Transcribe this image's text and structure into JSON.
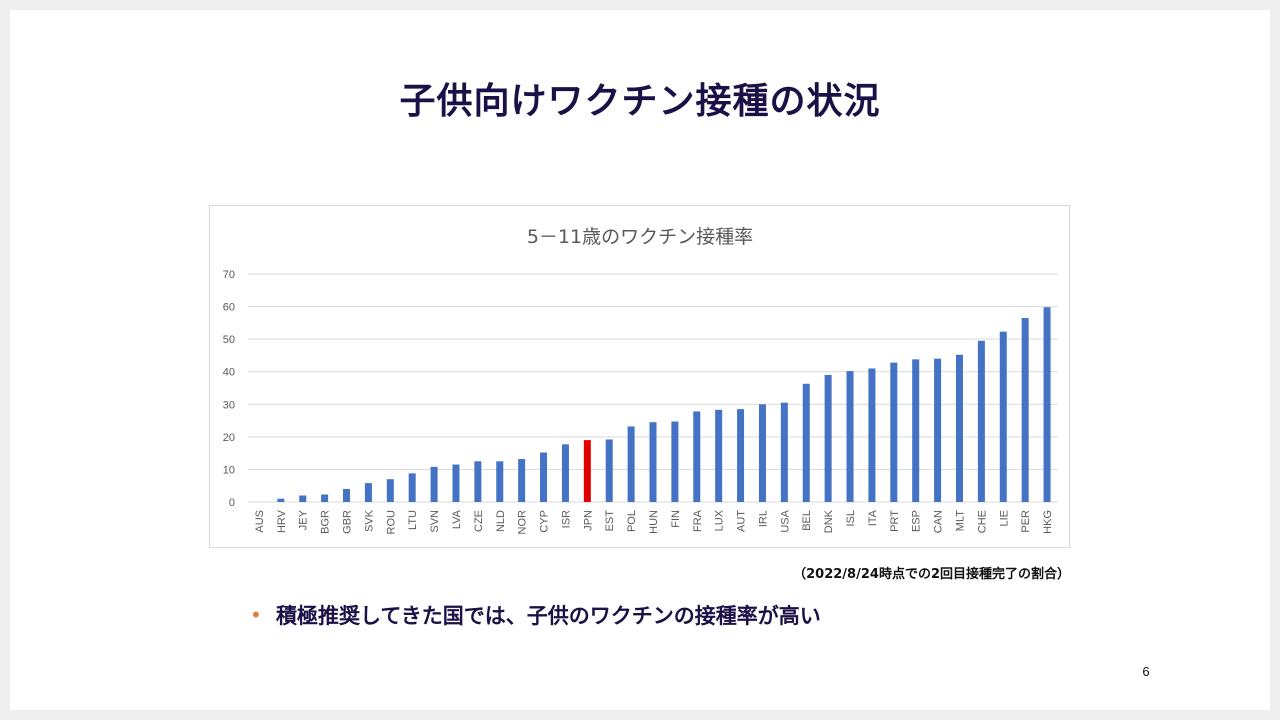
{
  "slide": {
    "title": "子供向けワクチン接種の状況",
    "note": "（2022/8/24時点での2回目接種完了の割合）",
    "bullet": "積極推奨してきた国では、子供のワクチンの接種率が高い",
    "bullet_marker": "•",
    "page_number": "6"
  },
  "chart_data": {
    "type": "bar",
    "title": "5－11歳のワクチン接種率",
    "xlabel": "",
    "ylabel": "",
    "ylim": [
      0,
      70
    ],
    "yticks": [
      0,
      10,
      20,
      30,
      40,
      50,
      60,
      70
    ],
    "grid": true,
    "categories": [
      "AUS",
      "HRV",
      "JEY",
      "BGR",
      "GBR",
      "SVK",
      "ROU",
      "LTU",
      "SVN",
      "LVA",
      "CZE",
      "NLD",
      "NOR",
      "CYP",
      "ISR",
      "JPN",
      "EST",
      "POL",
      "HUN",
      "FIN",
      "FRA",
      "LUX",
      "AUT",
      "IRL",
      "USA",
      "BEL",
      "DNK",
      "ISL",
      "ITA",
      "PRT",
      "ESP",
      "CAN",
      "MLT",
      "CHE",
      "LIE",
      "PER",
      "HKG"
    ],
    "values": [
      0,
      1,
      2,
      2.3,
      4,
      5.8,
      7,
      8.8,
      10.8,
      11.5,
      12.5,
      12.5,
      13.2,
      15.2,
      17.7,
      19,
      19.2,
      23.2,
      24.5,
      24.7,
      27.8,
      28.3,
      28.5,
      30,
      30.5,
      36.3,
      39,
      40.2,
      41,
      42.8,
      43.8,
      44,
      45.2,
      49.5,
      52.3,
      56.5,
      59.8
    ],
    "colors": {
      "default": "#4472c4",
      "highlight": "#e00000"
    },
    "highlight_category": "JPN"
  }
}
